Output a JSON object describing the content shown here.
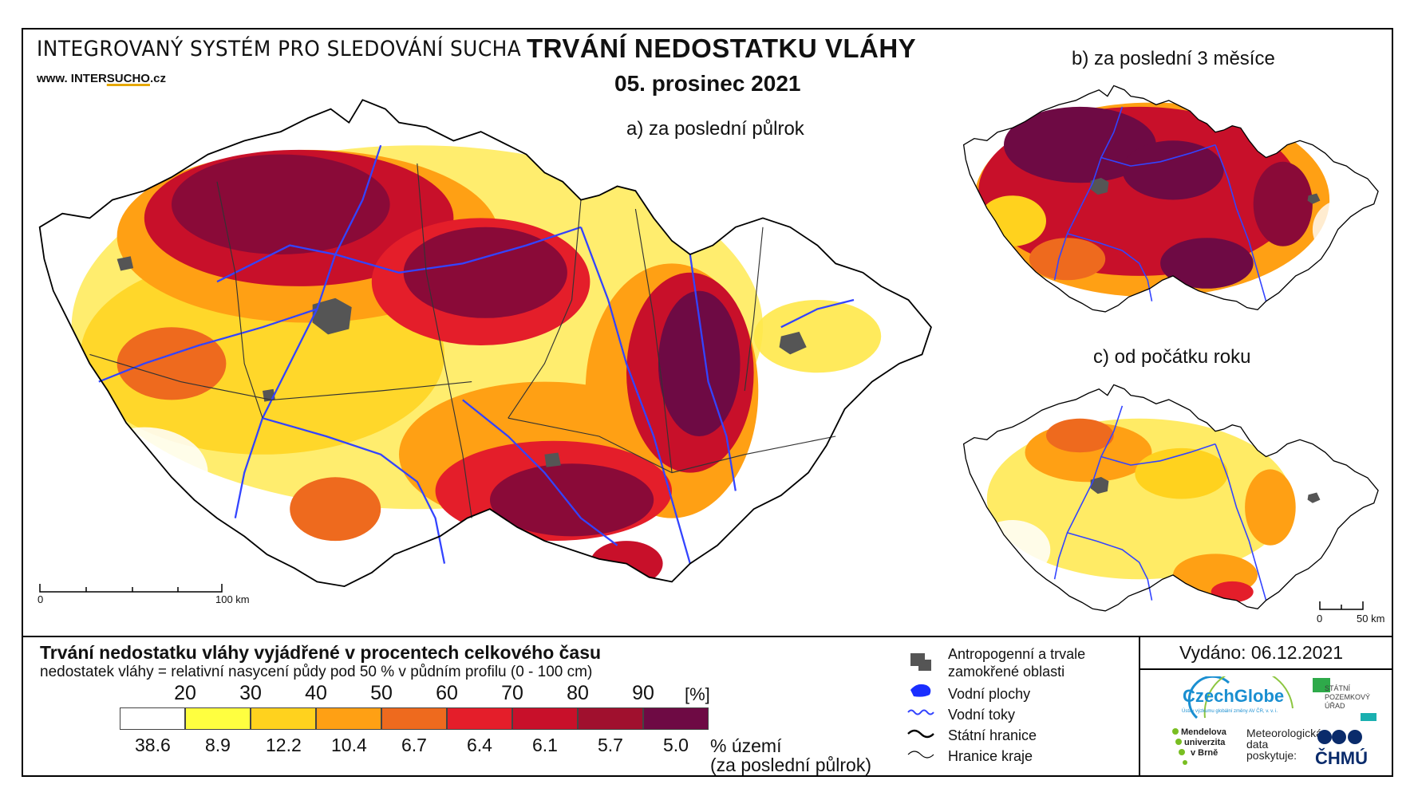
{
  "header": {
    "system_title": "INTEGROVANÝ SYSTÉM PRO SLEDOVÁNÍ SUCHA",
    "website_prefix": "www. INTER",
    "website_highlight": "SUCHO",
    "website_suffix": ".cz",
    "title": "TRVÁNÍ NEDOSTATKU VLÁHY",
    "date": "05. prosinec 2021"
  },
  "maps": {
    "a": {
      "label": "a) za poslední půlrok"
    },
    "b": {
      "label": "b) za poslední 3 měsíce"
    },
    "c": {
      "label": "c) od počátku roku"
    }
  },
  "scale_bars": {
    "main": {
      "start": "0",
      "end": "100 km"
    },
    "small": {
      "start": "0",
      "end": "50 km"
    }
  },
  "legend": {
    "title": "Trvání nedostatku vláhy vyjádřené v procentech celkového času",
    "subtitle": "nedostatek vláhy = relativní nasycení půdy pod 50 % v půdním profilu (0 - 100 cm)",
    "unit": "[%]",
    "ticks": [
      "20",
      "30",
      "40",
      "50",
      "60",
      "70",
      "80",
      "90"
    ],
    "classes": [
      {
        "color": "#ffffff",
        "share": "38.6"
      },
      {
        "color": "#ffff40",
        "share": "8.9"
      },
      {
        "color": "#ffd21e",
        "share": "12.2"
      },
      {
        "color": "#ffa014",
        "share": "10.4"
      },
      {
        "color": "#ee6a1e",
        "share": "6.7"
      },
      {
        "color": "#e41e2a",
        "share": "6.4"
      },
      {
        "color": "#c8102a",
        "share": "6.1"
      },
      {
        "color": "#a0102e",
        "share": "5.7"
      },
      {
        "color": "#6e0a44",
        "share": "5.0"
      }
    ],
    "share_label_1": "% území",
    "share_label_2": "(za poslední půlrok)"
  },
  "symbols": {
    "urban": "Antropogenní a trvale zamokřené oblasti",
    "urban_line1": "Antropogenní a trvale",
    "urban_line2": "zamokřené oblasti",
    "water_bodies": "Vodní plochy",
    "rivers": "Vodní toky",
    "state_border": "Státní hranice",
    "region_border": "Hranice kraje"
  },
  "issued": "Vydáno: 06.12.2021",
  "logos": {
    "czechglobe": "CzechGlobe",
    "czechglobe_sub": "Ústav výzkumu globální změny AV ČR, v. v. i.",
    "spu_1": "STÁTNÍ",
    "spu_2": "POZEMKOVÝ",
    "spu_3": "ÚŘAD",
    "mendelu_1": "Mendelova",
    "mendelu_2": "univerzita",
    "mendelu_3": "v Brně",
    "met_1": "Meteorologická",
    "met_2": "data",
    "met_3": "poskytuje:",
    "chmu": "ČHMÚ"
  },
  "colors": {
    "river": "#3344ff",
    "urban": "#555555",
    "border": "#000000",
    "region_border": "#333333"
  }
}
